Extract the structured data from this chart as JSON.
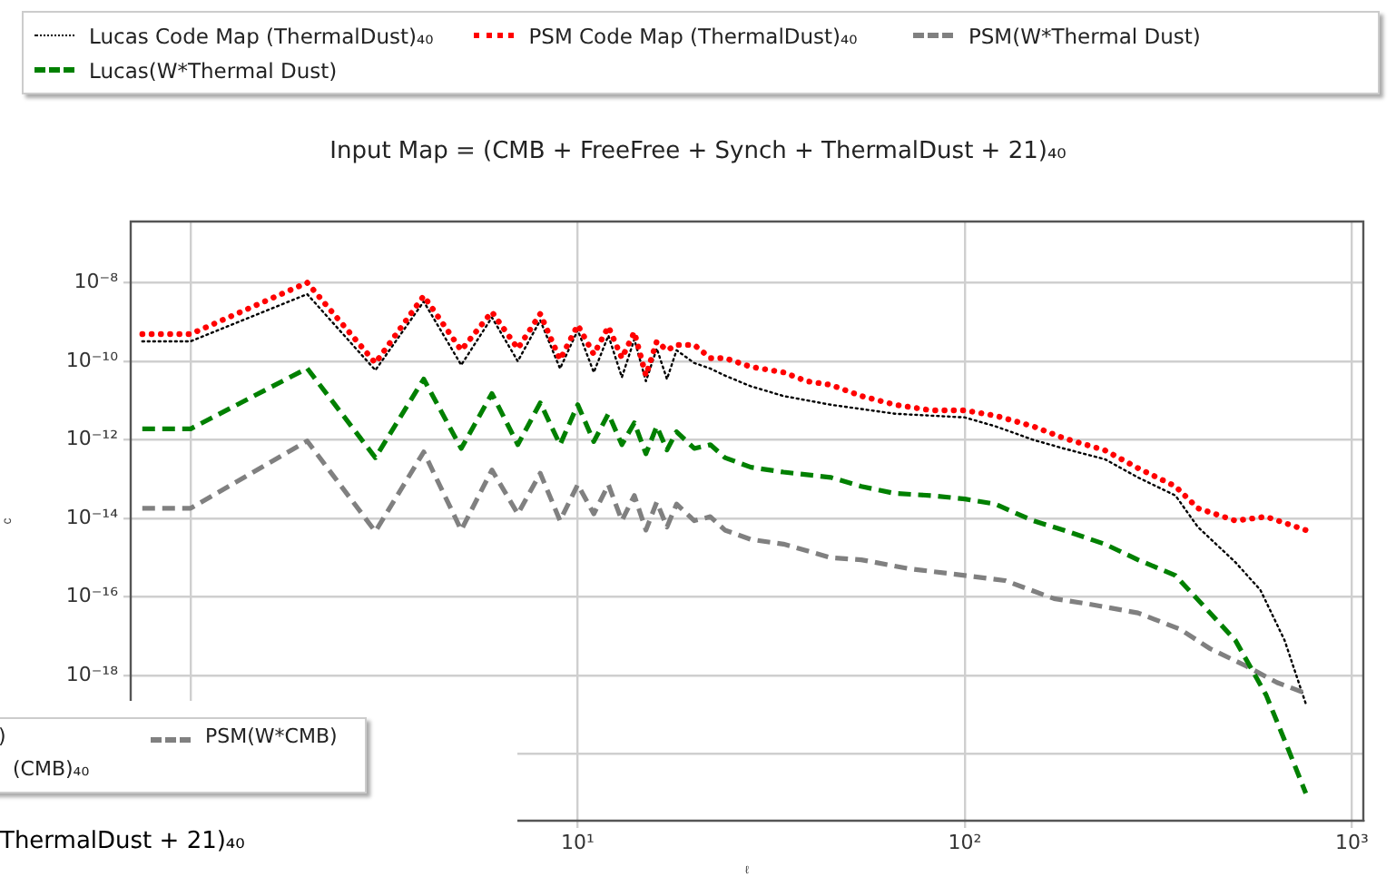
{
  "chart_data": {
    "type": "line",
    "title": "Input Map  = (CMB + FreeFree + Synch + ThermalDust + 21)₄₀",
    "xlabel": "ℓ",
    "ylabel": "c",
    "log": "xy",
    "grid": true,
    "legend": "top",
    "xlim": [
      0.72,
      1070
    ],
    "ylim": [
      2e-22,
      3.6e-07
    ],
    "xticks": [
      {
        "value": 1,
        "label": null
      },
      {
        "value": 10,
        "label": "10¹"
      },
      {
        "value": 100,
        "label": "10²"
      },
      {
        "value": 1000,
        "label": "10³"
      }
    ],
    "yticks": [
      {
        "value": 1e-20,
        "label": null
      },
      {
        "value": 1e-18,
        "label": "10⁻¹⁸"
      },
      {
        "value": 1e-16,
        "label": "10⁻¹⁶"
      },
      {
        "value": 1e-14,
        "label": "10⁻¹⁴"
      },
      {
        "value": 1e-12,
        "label": "10⁻¹²"
      },
      {
        "value": 1e-10,
        "label": "10⁻¹⁰"
      },
      {
        "value": 1e-08,
        "label": "10⁻⁸"
      }
    ],
    "annotations": [
      ")",
      "PSM(W*CMB)",
      "(CMB)₄₀",
      "ThermalDust + 21)₄₀"
    ],
    "series": [
      {
        "name": "Lucas Code Map (ThermalDust)₄₀",
        "color": "#000000",
        "line_style": "dotted",
        "x": [
          0.75,
          1,
          2,
          3,
          4,
          5,
          6,
          7,
          8,
          9,
          10,
          11,
          12,
          13,
          14,
          15,
          16,
          17,
          18,
          20,
          22,
          24,
          28,
          34,
          45,
          66,
          100,
          120,
          150,
          180,
          230,
          280,
          350,
          400,
          500,
          580,
          670,
          760
        ],
        "values": [
          3.2e-10,
          3.2e-10,
          5.1e-09,
          5.9e-11,
          3.3e-09,
          8e-11,
          1.3e-09,
          1e-10,
          1.1e-09,
          6.5e-11,
          6.2e-10,
          5.2e-11,
          4.5e-10,
          3.9e-11,
          3.6e-10,
          3.1e-11,
          2.1e-10,
          3.5e-11,
          1.9e-10,
          9e-11,
          6.5e-11,
          4.3e-11,
          2.3e-11,
          1.3e-11,
          7.8e-12,
          4.6e-12,
          3.7e-12,
          2.2e-12,
          1e-12,
          6e-13,
          3.2e-13,
          1.1e-13,
          3.8e-14,
          6e-15,
          7.6e-16,
          1.5e-16,
          7.8e-18,
          1.9e-19
        ]
      },
      {
        "name": "PSM Code Map (ThermalDust)₄₀",
        "color": "#ff0000",
        "line_style": "dotted",
        "x": [
          0.75,
          1,
          2,
          3,
          4,
          5,
          6,
          7,
          8,
          9,
          10,
          11,
          12,
          13,
          14,
          15,
          16,
          17,
          18,
          20,
          22,
          24,
          28,
          34,
          39,
          45,
          54,
          66,
          82,
          100,
          120,
          150,
          180,
          230,
          280,
          350,
          400,
          500,
          600,
          760
        ],
        "values": [
          4.9e-10,
          4.9e-10,
          1e-08,
          9e-11,
          4.6e-09,
          1.9e-10,
          1.8e-09,
          2.1e-10,
          1.6e-09,
          1.1e-10,
          8.3e-10,
          1.5e-10,
          7.6e-10,
          1.2e-10,
          5.5e-10,
          4.3e-11,
          3.2e-10,
          1.9e-10,
          2.6e-10,
          2.6e-10,
          1.2e-10,
          1.2e-10,
          7.2e-11,
          5.2e-11,
          3.1e-11,
          2.5e-11,
          1.3e-11,
          7.8e-12,
          5.6e-12,
          5.6e-12,
          4.1e-12,
          2.2e-12,
          1.1e-12,
          5.4e-13,
          1.9e-13,
          6.5e-14,
          1.8e-14,
          8.7e-15,
          1.1e-14,
          5e-15
        ]
      },
      {
        "name": "PSM(W*Thermal Dust)",
        "color": "#808080",
        "line_style": "dashed",
        "x": [
          0.75,
          1,
          2,
          3,
          4,
          5,
          6,
          7,
          8,
          9,
          10,
          11,
          12,
          13,
          14,
          15,
          16,
          17,
          18,
          20,
          22,
          24,
          28,
          34,
          45,
          54,
          71,
          100,
          127,
          170,
          210,
          280,
          360,
          430,
          535,
          640,
          760
        ],
        "values": [
          1.8e-14,
          1.8e-14,
          9.3e-13,
          4.6e-15,
          4.9e-13,
          5e-15,
          1.7e-13,
          1.3e-14,
          1.4e-13,
          8.7e-15,
          7.2e-14,
          1.3e-14,
          7.2e-14,
          8.7e-15,
          3.8e-14,
          5e-15,
          2.6e-14,
          6e-15,
          2.3e-14,
          8.7e-15,
          1.1e-14,
          5e-15,
          2.9e-15,
          2.2e-15,
          1e-15,
          8.8e-16,
          5.3e-16,
          3.5e-16,
          2.6e-16,
          9e-17,
          6.5e-17,
          3.9e-17,
          1.5e-17,
          4.8e-18,
          1.7e-18,
          6.6e-19,
          3.5e-19
        ]
      },
      {
        "name": "Lucas(W*Thermal Dust)",
        "color": "#008000",
        "line_style": "dashed",
        "x": [
          0.75,
          1,
          2,
          3,
          4,
          5,
          6,
          7,
          8,
          9,
          10,
          11,
          12,
          13,
          14,
          15,
          16,
          17,
          18,
          20,
          22,
          24,
          28,
          34,
          45,
          54,
          66,
          82,
          100,
          120,
          150,
          180,
          230,
          280,
          350,
          410,
          500,
          600,
          685,
          760
        ],
        "values": [
          1.9e-12,
          1.9e-12,
          6.6e-11,
          3.5e-13,
          3.5e-11,
          6e-13,
          1.5e-11,
          7.5e-13,
          8.7e-12,
          7.5e-13,
          7.8e-12,
          9e-13,
          4.6e-12,
          7.5e-13,
          2.7e-12,
          4.4e-13,
          2.2e-12,
          5.5e-13,
          1.6e-12,
          6e-13,
          7.5e-13,
          3.5e-13,
          2e-13,
          1.5e-13,
          1.1e-13,
          6.5e-14,
          4.3e-14,
          3.8e-14,
          3.1e-14,
          2.3e-14,
          8.7e-15,
          5e-15,
          2.2e-15,
          8.8e-16,
          3.5e-16,
          6.5e-17,
          7.8e-18,
          3.2e-19,
          1.3e-20,
          1e-21
        ]
      }
    ]
  }
}
